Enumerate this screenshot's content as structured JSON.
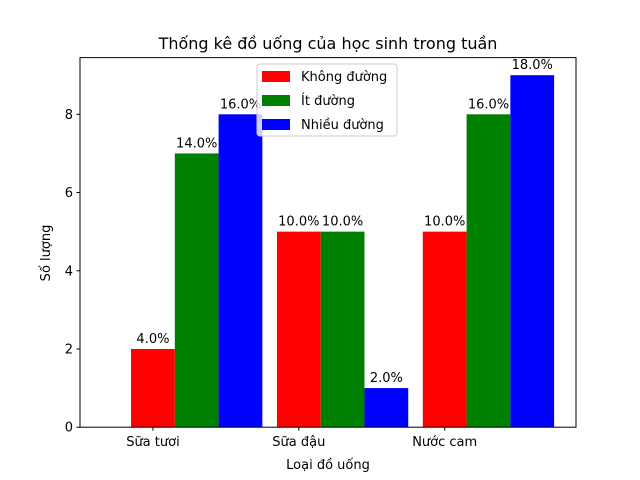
{
  "chart_data": {
    "type": "bar",
    "title": "Thống kê đồ uống của học sinh trong tuần",
    "xlabel": "Loại đồ uống",
    "ylabel": "Số lượng",
    "categories": [
      "Sữa tươi",
      "Sữa đậu",
      "Nước cam"
    ],
    "series": [
      {
        "name": "Không đường",
        "color": "#ff0000",
        "values": [
          2,
          5,
          5
        ],
        "labels": [
          "4.0%",
          "10.0%",
          "10.0%"
        ]
      },
      {
        "name": "Ít đường",
        "color": "#008000",
        "values": [
          7,
          5,
          8
        ],
        "labels": [
          "14.0%",
          "10.0%",
          "16.0%"
        ]
      },
      {
        "name": "Nhiều đường",
        "color": "#0000ff",
        "values": [
          8,
          1,
          9
        ],
        "labels": [
          "16.0%",
          "2.0%",
          "18.0%"
        ]
      }
    ],
    "ylim": [
      0,
      9.45
    ],
    "yticks": [
      0,
      2,
      4,
      6,
      8
    ],
    "grid": false,
    "legend_position": "top-center"
  }
}
